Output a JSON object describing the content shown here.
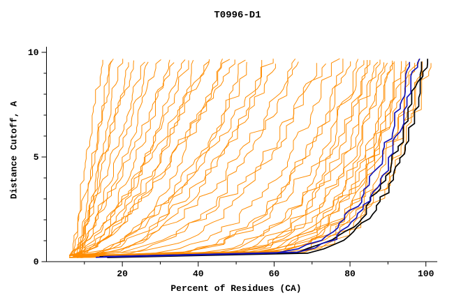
{
  "chart_data": {
    "type": "line",
    "title": "T0996-D1",
    "xlabel": "Percent of Residues (CA)",
    "ylabel": "Distance Cutoff, A",
    "xlim": [
      0,
      103
    ],
    "ylim": [
      0,
      10
    ],
    "xticks_labeled": [
      20,
      40,
      60,
      80,
      100
    ],
    "xticks_minor": [
      10,
      30,
      50,
      70,
      90
    ],
    "yticks_labeled": [
      0,
      5,
      10
    ],
    "yticks_minor": [
      1,
      2,
      3,
      4,
      6,
      7,
      8,
      9
    ],
    "grid": false,
    "legend": "none",
    "colors": {
      "orange": "#ff8c00",
      "black": "#000000",
      "blue": "#1414b8"
    },
    "series_note": "Each series is a cumulative curve: percent of CA residues (x) under distance cutoff (y). xs = percent at cutoff ~0.2A, xe = percent at cutoff 10A, p = shape exponent of rise.",
    "series": [
      {
        "c": "orange",
        "xs": 7,
        "xe": 15,
        "p": 1.2,
        "s": 101
      },
      {
        "c": "orange",
        "xs": 8,
        "xe": 17,
        "p": 1.0,
        "s": 102
      },
      {
        "c": "orange",
        "xs": 6,
        "xe": 18,
        "p": 0.9,
        "s": 103
      },
      {
        "c": "orange",
        "xs": 9,
        "xe": 20,
        "p": 1.1,
        "s": 104
      },
      {
        "c": "orange",
        "xs": 7,
        "xe": 22,
        "p": 0.85,
        "s": 105
      },
      {
        "c": "orange",
        "xs": 8,
        "xe": 24,
        "p": 1.15,
        "s": 106
      },
      {
        "c": "orange",
        "xs": 6,
        "xe": 26,
        "p": 0.8,
        "s": 107
      },
      {
        "c": "orange",
        "xs": 9,
        "xe": 28,
        "p": 0.95,
        "s": 108
      },
      {
        "c": "orange",
        "xs": 7,
        "xe": 30,
        "p": 0.75,
        "s": 109
      },
      {
        "c": "orange",
        "xs": 6,
        "xe": 33,
        "p": 0.6,
        "s": 110
      },
      {
        "c": "orange",
        "xs": 7,
        "xe": 36,
        "p": 0.55,
        "s": 111
      },
      {
        "c": "orange",
        "xs": 8,
        "xe": 38,
        "p": 0.7,
        "s": 112
      },
      {
        "c": "orange",
        "xs": 6,
        "xe": 40,
        "p": 0.5,
        "s": 113
      },
      {
        "c": "orange",
        "xs": 7,
        "xe": 43,
        "p": 0.65,
        "s": 114
      },
      {
        "c": "orange",
        "xs": 8,
        "xe": 46,
        "p": 0.45,
        "s": 115
      },
      {
        "c": "orange",
        "xs": 6,
        "xe": 48,
        "p": 0.6,
        "s": 116
      },
      {
        "c": "orange",
        "xs": 7,
        "xe": 52,
        "p": 0.4,
        "s": 117
      },
      {
        "c": "orange",
        "xs": 8,
        "xe": 55,
        "p": 0.55,
        "s": 118
      },
      {
        "c": "orange",
        "xs": 6,
        "xe": 58,
        "p": 0.38,
        "s": 119
      },
      {
        "c": "orange",
        "xs": 7,
        "xe": 62,
        "p": 0.5,
        "s": 120
      },
      {
        "c": "orange",
        "xs": 8,
        "xe": 65,
        "p": 0.35,
        "s": 121
      },
      {
        "c": "orange",
        "xs": 6,
        "xe": 68,
        "p": 0.45,
        "s": 122
      },
      {
        "c": "orange",
        "xs": 7,
        "xe": 72,
        "p": 0.32,
        "s": 123
      },
      {
        "c": "orange",
        "xs": 8,
        "xe": 34,
        "p": 0.9,
        "s": 124
      },
      {
        "c": "orange",
        "xs": 6,
        "xe": 44,
        "p": 0.8,
        "s": 125
      },
      {
        "c": "orange",
        "xs": 7,
        "xe": 50,
        "p": 0.7,
        "s": 126
      },
      {
        "c": "orange",
        "xs": 8,
        "xe": 60,
        "p": 0.6,
        "s": 127
      },
      {
        "c": "orange",
        "xs": 6,
        "xe": 74,
        "p": 0.4,
        "s": 128
      },
      {
        "c": "orange",
        "xs": 7,
        "xe": 76,
        "p": 0.28,
        "s": 130
      },
      {
        "c": "orange",
        "xs": 6,
        "xe": 78,
        "p": 0.22,
        "s": 131
      },
      {
        "c": "orange",
        "xs": 8,
        "xe": 80,
        "p": 0.26,
        "s": 132
      },
      {
        "c": "orange",
        "xs": 7,
        "xe": 82,
        "p": 0.18,
        "s": 133
      },
      {
        "c": "orange",
        "xs": 6,
        "xe": 83,
        "p": 0.24,
        "s": 134
      },
      {
        "c": "orange",
        "xs": 8,
        "xe": 84,
        "p": 0.16,
        "s": 135
      },
      {
        "c": "orange",
        "xs": 7,
        "xe": 85,
        "p": 0.21,
        "s": 136
      },
      {
        "c": "orange",
        "xs": 6,
        "xe": 86,
        "p": 0.14,
        "s": 137
      },
      {
        "c": "orange",
        "xs": 8,
        "xe": 87,
        "p": 0.19,
        "s": 138
      },
      {
        "c": "orange",
        "xs": 7,
        "xe": 88,
        "p": 0.13,
        "s": 139
      },
      {
        "c": "orange",
        "xs": 6,
        "xe": 89,
        "p": 0.17,
        "s": 140
      },
      {
        "c": "orange",
        "xs": 8,
        "xe": 90,
        "p": 0.12,
        "s": 141
      },
      {
        "c": "orange",
        "xs": 7,
        "xe": 91,
        "p": 0.16,
        "s": 142
      },
      {
        "c": "orange",
        "xs": 6,
        "xe": 92,
        "p": 0.11,
        "s": 143
      },
      {
        "c": "orange",
        "xs": 8,
        "xe": 93,
        "p": 0.15,
        "s": 144
      },
      {
        "c": "orange",
        "xs": 7,
        "xe": 94,
        "p": 0.13,
        "s": 145
      },
      {
        "c": "orange",
        "xs": 6,
        "xe": 95,
        "p": 0.17,
        "s": 146
      },
      {
        "c": "orange",
        "xs": 8,
        "xe": 96,
        "p": 0.12,
        "s": 147
      },
      {
        "c": "orange",
        "xs": 7,
        "xe": 97,
        "p": 0.15,
        "s": 148
      },
      {
        "c": "orange",
        "xs": 6,
        "xe": 98,
        "p": 0.11,
        "s": 149
      },
      {
        "c": "orange",
        "xs": 8,
        "xe": 99,
        "p": 0.14,
        "s": 150
      },
      {
        "c": "orange",
        "xs": 7,
        "xe": 100,
        "p": 0.12,
        "s": 151
      },
      {
        "c": "black",
        "xs": 14,
        "xe": 99,
        "p": 0.13,
        "s": 201
      },
      {
        "c": "black",
        "xs": 16,
        "xe": 100,
        "p": 0.12,
        "s": 202
      },
      {
        "c": "blue",
        "xs": 13,
        "xe": 96,
        "p": 0.14,
        "s": 211
      },
      {
        "c": "blue",
        "xs": 15,
        "xe": 97.5,
        "p": 0.125,
        "s": 212
      }
    ]
  }
}
